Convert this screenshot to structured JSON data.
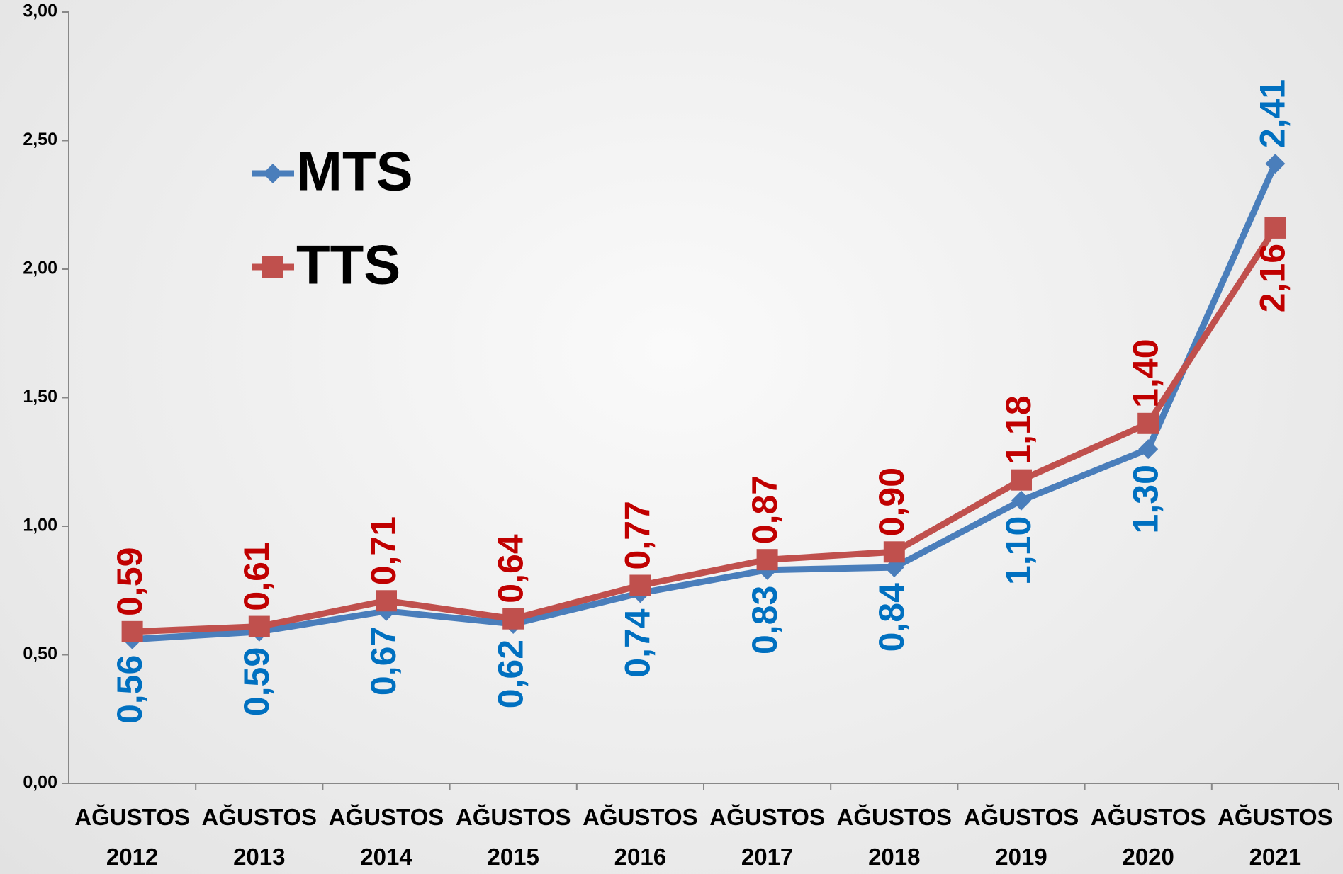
{
  "chart_data": {
    "type": "line",
    "categories": [
      "AĞUSTOS 2012",
      "AĞUSTOS 2013",
      "AĞUSTOS 2014",
      "AĞUSTOS 2015",
      "AĞUSTOS 2016",
      "AĞUSTOS 2017",
      "AĞUSTOS 2018",
      "AĞUSTOS 2019",
      "AĞUSTOS 2020",
      "AĞUSTOS 2021"
    ],
    "series": [
      {
        "name": "MTS",
        "color": "#4a7ebb",
        "label_color": "#0070c0",
        "marker": "diamond",
        "values": [
          0.56,
          0.59,
          0.67,
          0.62,
          0.74,
          0.83,
          0.84,
          1.1,
          1.3,
          2.41
        ],
        "value_labels": [
          "0,56",
          "0,59",
          "0,67",
          "0,62",
          "0,74",
          "0,83",
          "0,84",
          "1,10",
          "1,30",
          "2,41"
        ]
      },
      {
        "name": "TTS",
        "color": "#c0504d",
        "label_color": "#c00000",
        "marker": "square",
        "values": [
          0.59,
          0.61,
          0.71,
          0.64,
          0.77,
          0.87,
          0.9,
          1.18,
          1.4,
          2.16
        ],
        "value_labels": [
          "0,59",
          "0,61",
          "0,71",
          "0,64",
          "0,77",
          "0,87",
          "0,90",
          "1,18",
          "1,40",
          "2,16"
        ]
      }
    ],
    "ylim": [
      0,
      3
    ],
    "yticks": [
      {
        "value": 0,
        "label": "0,00"
      },
      {
        "value": 0.5,
        "label": "0,50"
      },
      {
        "value": 1,
        "label": "1,00"
      },
      {
        "value": 1.5,
        "label": "1,50"
      },
      {
        "value": 2,
        "label": "2,00"
      },
      {
        "value": 2.5,
        "label": "2,50"
      },
      {
        "value": 3,
        "label": "3,00"
      }
    ],
    "grid": false
  }
}
